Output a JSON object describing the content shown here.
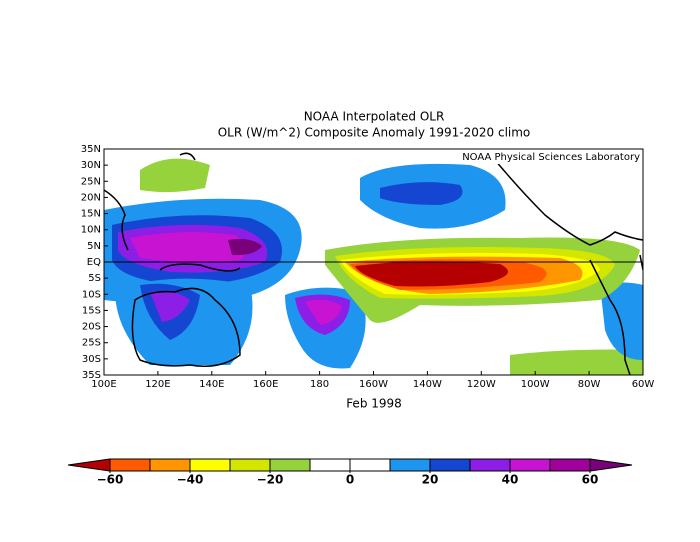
{
  "title": "NOAA Interpolated OLR",
  "subtitle": "OLR (W/m^2) Composite Anomaly 1991-2020 climo",
  "credit": "NOAA Physical Sciences Laboratory",
  "caption": "Feb 1998",
  "map": {
    "lat_ticks": [
      "35N",
      "30N",
      "25N",
      "20N",
      "15N",
      "10N",
      "5N",
      "EQ",
      "5S",
      "10S",
      "15S",
      "20S",
      "25S",
      "30S",
      "35S"
    ],
    "lon_ticks": [
      "100E",
      "120E",
      "140E",
      "160E",
      "180",
      "160W",
      "140W",
      "120W",
      "100W",
      "80W",
      "60W"
    ]
  },
  "colorbar": {
    "range": [
      -60,
      60
    ],
    "levels": [
      -60,
      -50,
      -40,
      -30,
      -20,
      -10,
      0,
      10,
      20,
      30,
      40,
      50,
      60
    ],
    "colors": [
      "#b40000",
      "#ff5a00",
      "#ff9600",
      "#ffff00",
      "#d2e600",
      "#96d23c",
      "#ffffff",
      "#ffffff",
      "#1e96f0",
      "#1446d2",
      "#8c1ee6",
      "#c814d2",
      "#a0009b",
      "#780078"
    ],
    "ticks": [
      {
        "value": -60,
        "label": "−60"
      },
      {
        "value": -40,
        "label": "−40"
      },
      {
        "value": -20,
        "label": "−20"
      },
      0,
      20,
      40,
      60
    ]
  }
}
